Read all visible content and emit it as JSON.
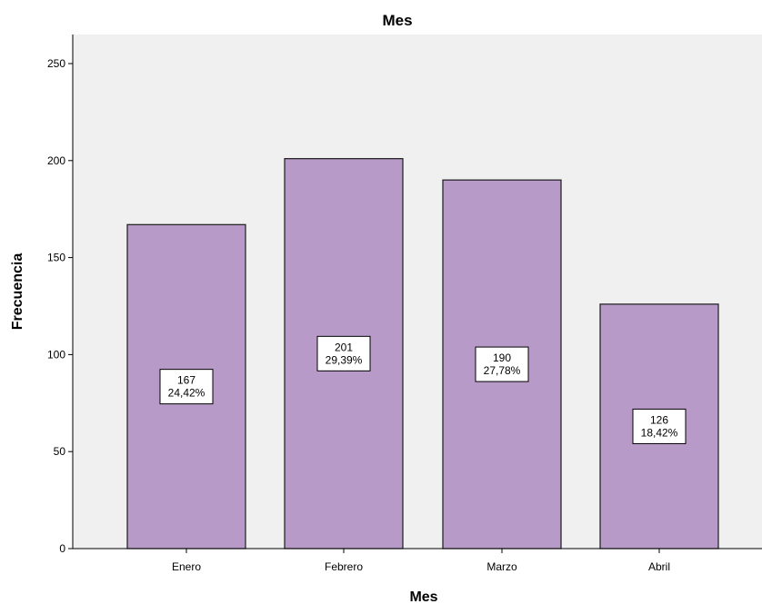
{
  "chart_data": {
    "type": "bar",
    "title": "Mes",
    "xlabel": "Mes",
    "ylabel": "Frecuencia",
    "categories": [
      "Enero",
      "Febrero",
      "Marzo",
      "Abril"
    ],
    "values": [
      167,
      201,
      190,
      126
    ],
    "data_labels": [
      {
        "count": "167",
        "percent": "24,42%"
      },
      {
        "count": "201",
        "percent": "29,39%"
      },
      {
        "count": "190",
        "percent": "27,78%"
      },
      {
        "count": "126",
        "percent": "18,42%"
      }
    ],
    "ylim": [
      0,
      265
    ],
    "yticks": [
      0,
      50,
      100,
      150,
      200,
      250
    ],
    "grid": false,
    "legend": "none",
    "colors": {
      "bar_fill": "#b89ac9",
      "bar_stroke": "#1a1a1a",
      "plot_background": "#f0f0f0",
      "label_box": "#ffffff"
    }
  }
}
